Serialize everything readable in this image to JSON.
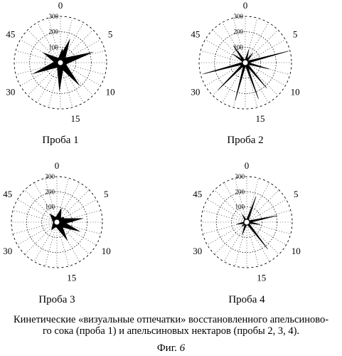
{
  "chart_data": [
    {
      "type": "radar",
      "title": "Проба 1",
      "axis_labels": [
        "0",
        "5",
        "10",
        "15",
        "30",
        "45"
      ],
      "radial_ticks": [
        100,
        200,
        300
      ],
      "rlim": [
        0,
        300
      ],
      "grid": true,
      "style": "filled black spikes",
      "spikes": [
        {
          "angle": 8,
          "value": 95
        },
        {
          "angle": 22,
          "value": 170
        },
        {
          "angle": 72,
          "value": 230
        },
        {
          "angle": 110,
          "value": 45
        },
        {
          "angle": 140,
          "value": 200
        },
        {
          "angle": 182,
          "value": 190
        },
        {
          "angle": 248,
          "value": 200
        },
        {
          "angle": 300,
          "value": 135
        }
      ]
    },
    {
      "type": "radar",
      "title": "Проба 2",
      "axis_labels": [
        "0",
        "5",
        "10",
        "15",
        "30",
        "45"
      ],
      "radial_ticks": [
        100,
        200,
        300
      ],
      "rlim": [
        0,
        300
      ],
      "grid": true,
      "style": "thin black spikes",
      "spikes": [
        {
          "angle": 15,
          "value": 90
        },
        {
          "angle": 38,
          "value": 80
        },
        {
          "angle": 75,
          "value": 290
        },
        {
          "angle": 105,
          "value": 160
        },
        {
          "angle": 140,
          "value": 215
        },
        {
          "angle": 160,
          "value": 250
        },
        {
          "angle": 195,
          "value": 255
        },
        {
          "angle": 225,
          "value": 250
        },
        {
          "angle": 255,
          "value": 280
        },
        {
          "angle": 305,
          "value": 100
        },
        {
          "angle": 325,
          "value": 135
        }
      ]
    },
    {
      "type": "radar",
      "title": "Проба 3",
      "axis_labels": [
        "0",
        "5",
        "10",
        "15",
        "30",
        "45"
      ],
      "radial_ticks": [
        100,
        200,
        300
      ],
      "rlim": [
        0,
        300
      ],
      "grid": true,
      "style": "filled black spikes",
      "spikes": [
        {
          "angle": 18,
          "value": 100
        },
        {
          "angle": 55,
          "value": 60
        },
        {
          "angle": 82,
          "value": 180
        },
        {
          "angle": 112,
          "value": 170
        },
        {
          "angle": 150,
          "value": 145
        },
        {
          "angle": 215,
          "value": 65
        },
        {
          "angle": 320,
          "value": 75
        }
      ]
    },
    {
      "type": "radar",
      "title": "Проба 4",
      "axis_labels": [
        "0",
        "5",
        "10",
        "15",
        "30",
        "45"
      ],
      "radial_ticks": [
        100,
        200,
        300
      ],
      "rlim": [
        0,
        300
      ],
      "grid": true,
      "style": "thin black spikes",
      "spikes": [
        {
          "angle": 20,
          "value": 180
        },
        {
          "angle": 78,
          "value": 205
        },
        {
          "angle": 100,
          "value": 90
        },
        {
          "angle": 142,
          "value": 225
        },
        {
          "angle": 200,
          "value": 90
        },
        {
          "angle": 228,
          "value": 45
        },
        {
          "angle": 258,
          "value": 70
        },
        {
          "angle": 330,
          "value": 60
        }
      ]
    }
  ],
  "caption": {
    "line1": "Кинетические «визуальные отпечатки» восстановленного апельсиново-",
    "line2": "го сока (проба 1) и апельсиновых нектаров (пробы 2, 3, 4)."
  },
  "figure_label": {
    "word": "Фиг.",
    "number": "6"
  }
}
